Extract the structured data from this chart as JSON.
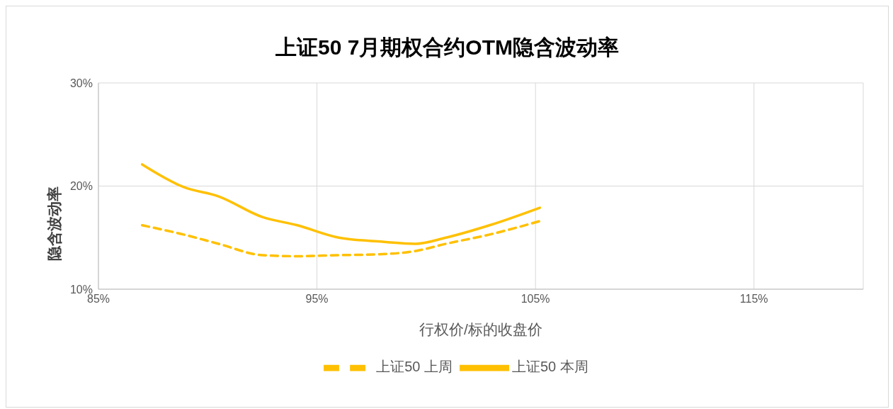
{
  "chart_data": {
    "type": "line",
    "title": "上证50 7月期权合约OTM隐含波动率",
    "xlabel": "行权价/标的收盘价",
    "ylabel": "隐含波动率",
    "xlim": [
      85,
      120
    ],
    "xticks": [
      {
        "value": 85,
        "label": "85%"
      },
      {
        "value": 95,
        "label": "95%"
      },
      {
        "value": 105,
        "label": "105%"
      },
      {
        "value": 115,
        "label": "115%"
      }
    ],
    "ylim": [
      10,
      30
    ],
    "yticks": [
      {
        "value": 10,
        "label": "10%"
      },
      {
        "value": 20,
        "label": "20%"
      },
      {
        "value": 30,
        "label": "30%"
      }
    ],
    "grid": true,
    "legend": "bottom",
    "marker": "none",
    "series": [
      {
        "name": "上证50 本周",
        "color": "#ffc000",
        "line_style": "solid",
        "x": [
          87.0,
          88.9,
          90.5,
          92.5,
          94.1,
          96.0,
          98.0,
          99.5,
          100.9,
          102.9,
          105.2
        ],
        "values": [
          22.1,
          19.9,
          19.0,
          17.0,
          16.2,
          15.0,
          14.6,
          14.4,
          15.0,
          16.2,
          17.9
        ]
      },
      {
        "name": "上证50 上周",
        "color": "#ffc000",
        "line_style": "dashed",
        "x": [
          87.0,
          88.9,
          90.5,
          92.5,
          94.1,
          96.0,
          98.0,
          99.5,
          100.9,
          102.9,
          105.2
        ],
        "values": [
          16.2,
          15.3,
          14.4,
          13.3,
          13.2,
          13.3,
          13.4,
          13.7,
          14.4,
          15.3,
          16.6
        ]
      }
    ]
  }
}
